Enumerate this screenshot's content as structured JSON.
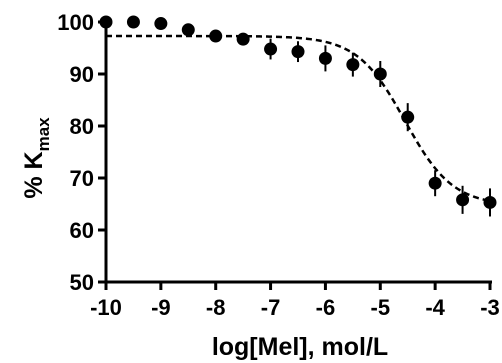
{
  "chart_data": {
    "type": "scatter",
    "xlabel": "log[Mel], mol/L",
    "ylabel": {
      "prefix": "% K",
      "subscript": "max"
    },
    "xlim": [
      -10,
      -3
    ],
    "ylim": [
      50,
      100
    ],
    "x_ticks": [
      -10,
      -9,
      -8,
      -7,
      -6,
      -5,
      -4,
      -3
    ],
    "y_ticks": [
      50,
      60,
      70,
      80,
      90,
      100
    ],
    "grid": false,
    "legend": "none",
    "points": [
      {
        "x": -10.0,
        "y": 100.0,
        "err": 0
      },
      {
        "x": -9.5,
        "y": 100.0,
        "err": 0
      },
      {
        "x": -9.0,
        "y": 99.7,
        "err": 0
      },
      {
        "x": -8.5,
        "y": 98.5,
        "err": 0.8
      },
      {
        "x": -8.0,
        "y": 97.3,
        "err": 0.8
      },
      {
        "x": -7.5,
        "y": 96.7,
        "err": 1.0
      },
      {
        "x": -7.0,
        "y": 94.8,
        "err": 2.0
      },
      {
        "x": -6.5,
        "y": 94.3,
        "err": 2.0
      },
      {
        "x": -6.0,
        "y": 93.0,
        "err": 2.5
      },
      {
        "x": -5.5,
        "y": 91.8,
        "err": 2.3
      },
      {
        "x": -5.0,
        "y": 90.0,
        "err": 2.5
      },
      {
        "x": -4.5,
        "y": 81.7,
        "err": 2.7
      },
      {
        "x": -4.0,
        "y": 69.0,
        "err": 2.5
      },
      {
        "x": -3.5,
        "y": 65.8,
        "err": 2.7
      },
      {
        "x": -3.0,
        "y": 65.3,
        "err": 2.7
      }
    ],
    "fit_curve": {
      "style": "dashed",
      "top": 97.3,
      "bottom": 64.7,
      "logEC50": -4.55,
      "hill": 1.0
    },
    "colors": {
      "points": "#000000",
      "curve": "#000000",
      "axes": "#000000"
    }
  }
}
